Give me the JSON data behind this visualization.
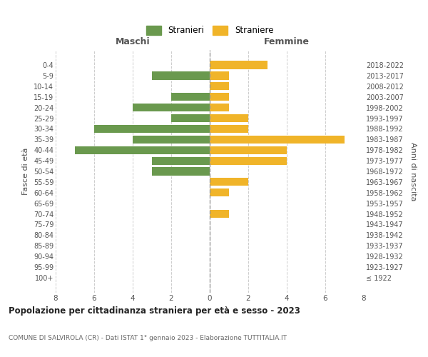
{
  "age_groups": [
    "100+",
    "95-99",
    "90-94",
    "85-89",
    "80-84",
    "75-79",
    "70-74",
    "65-69",
    "60-64",
    "55-59",
    "50-54",
    "45-49",
    "40-44",
    "35-39",
    "30-34",
    "25-29",
    "20-24",
    "15-19",
    "10-14",
    "5-9",
    "0-4"
  ],
  "birth_years": [
    "≤ 1922",
    "1923-1927",
    "1928-1932",
    "1933-1937",
    "1938-1942",
    "1943-1947",
    "1948-1952",
    "1953-1957",
    "1958-1962",
    "1963-1967",
    "1968-1972",
    "1973-1977",
    "1978-1982",
    "1983-1987",
    "1988-1992",
    "1993-1997",
    "1998-2002",
    "2003-2007",
    "2008-2012",
    "2013-2017",
    "2018-2022"
  ],
  "maschi": [
    0,
    0,
    0,
    0,
    0,
    0,
    0,
    0,
    0,
    0,
    3,
    3,
    7,
    4,
    6,
    2,
    4,
    2,
    0,
    3,
    0
  ],
  "femmine": [
    0,
    0,
    0,
    0,
    0,
    0,
    1,
    0,
    1,
    2,
    0,
    4,
    4,
    7,
    2,
    2,
    1,
    1,
    1,
    1,
    3
  ],
  "maschi_color": "#6a994e",
  "femmine_color": "#f0b429",
  "title": "Popolazione per cittadinanza straniera per età e sesso - 2023",
  "subtitle": "COMUNE DI SALVIROLA (CR) - Dati ISTAT 1° gennaio 2023 - Elaborazione TUTTITALIA.IT",
  "xlabel_left": "Maschi",
  "xlabel_right": "Femmine",
  "ylabel_left": "Fasce di età",
  "ylabel_right": "Anni di nascita",
  "legend_stranieri": "Stranieri",
  "legend_straniere": "Straniere",
  "xlim": 8,
  "background_color": "#ffffff",
  "grid_color": "#cccccc"
}
